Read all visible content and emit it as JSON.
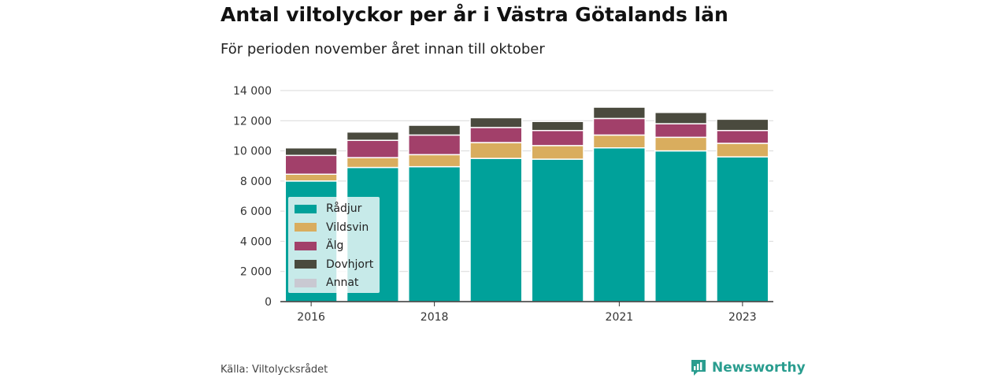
{
  "title": "Antal viltolyckor per år i Västra Götalands län",
  "subtitle": "För perioden november året innan till oktober",
  "source": "Källa: Viltolycksrådet",
  "brand": {
    "name": "Newsworthy",
    "icon": "newsworthy-logo-icon",
    "color": "#2a9d8f"
  },
  "chart_data": {
    "type": "bar",
    "stacked": true,
    "categories": [
      "2016",
      "2017",
      "2018",
      "2019",
      "2020",
      "2021",
      "2022",
      "2023"
    ],
    "x_tick_labels": [
      "2016",
      "",
      "2018",
      "",
      "",
      "2021",
      "",
      "2023"
    ],
    "y_ticks": [
      0,
      2000,
      4000,
      6000,
      8000,
      10000,
      12000,
      14000
    ],
    "y_tick_labels": [
      "0",
      "2 000",
      "4 000",
      "6 000",
      "8 000",
      "10 000",
      "12 000",
      "14 000"
    ],
    "ylim": [
      0,
      14000
    ],
    "grid": "horizontal",
    "legend_position": "bottom-left, inside plot",
    "series": [
      {
        "name": "Rådjur",
        "color": "#00a19a",
        "values": [
          8000,
          8900,
          8950,
          9500,
          9450,
          10200,
          10000,
          9600
        ]
      },
      {
        "name": "Vildsvin",
        "color": "#d9ad5e",
        "values": [
          450,
          650,
          800,
          1050,
          900,
          850,
          900,
          900
        ]
      },
      {
        "name": "Älg",
        "color": "#a2406a",
        "values": [
          1250,
          1150,
          1300,
          1000,
          1000,
          1100,
          900,
          850
        ]
      },
      {
        "name": "Dovhjort",
        "color": "#4a4a3e",
        "values": [
          500,
          550,
          650,
          650,
          600,
          750,
          750,
          750
        ]
      },
      {
        "name": "Annat",
        "color": "#c9c9d2",
        "values": [
          0,
          0,
          0,
          0,
          0,
          0,
          0,
          0
        ]
      }
    ]
  }
}
